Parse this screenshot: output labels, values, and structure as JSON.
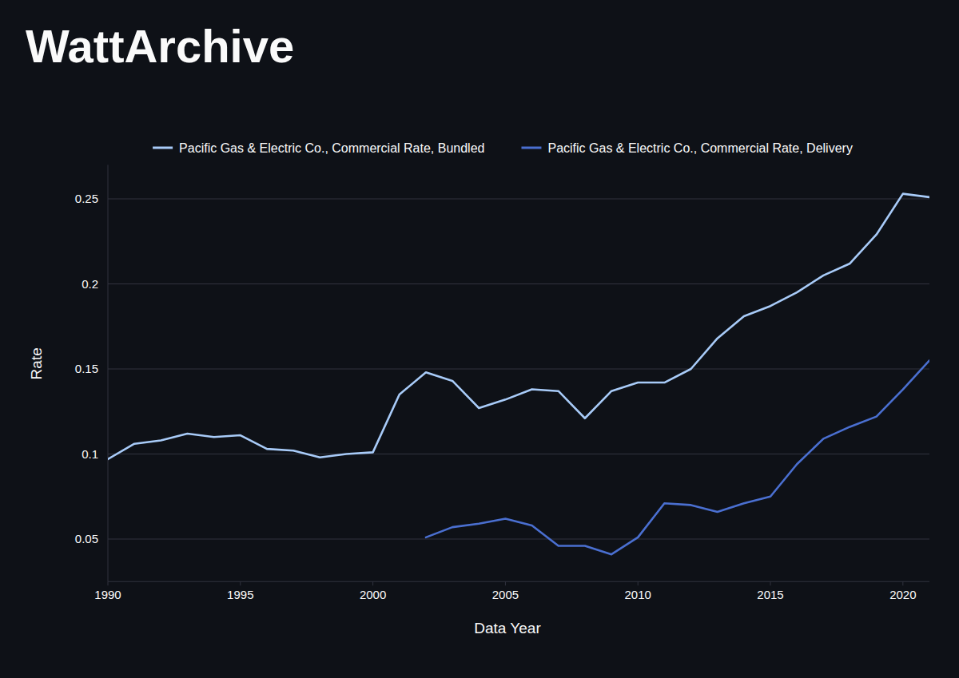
{
  "chart_data": {
    "type": "line",
    "title": "WattArchive",
    "x_label": "Data Year",
    "y_label": "Rate",
    "x": [
      1990,
      1991,
      1992,
      1993,
      1994,
      1995,
      1996,
      1997,
      1998,
      1999,
      2000,
      2001,
      2002,
      2003,
      2004,
      2005,
      2006,
      2007,
      2008,
      2009,
      2010,
      2011,
      2012,
      2013,
      2014,
      2015,
      2016,
      2017,
      2018,
      2019,
      2020,
      2021
    ],
    "series": [
      {
        "name": "Pacific Gas & Electric Co., Commercial Rate, Bundled",
        "color": "#a8cbf8",
        "values": [
          0.097,
          0.106,
          0.108,
          0.112,
          0.11,
          0.111,
          0.103,
          0.102,
          0.098,
          0.1,
          0.101,
          0.135,
          0.148,
          0.143,
          0.127,
          0.132,
          0.138,
          0.137,
          0.121,
          0.137,
          0.142,
          0.142,
          0.15,
          0.168,
          0.181,
          0.187,
          0.195,
          0.205,
          0.212,
          0.229,
          0.253,
          0.251
        ]
      },
      {
        "name": "Pacific Gas & Electric Co., Commercial Rate, Delivery",
        "color": "#4a6fd0",
        "values": [
          null,
          null,
          null,
          null,
          null,
          null,
          null,
          null,
          null,
          null,
          null,
          null,
          0.051,
          0.057,
          0.059,
          0.062,
          0.058,
          0.046,
          0.046,
          0.041,
          0.051,
          0.071,
          0.07,
          0.066,
          0.071,
          0.075,
          0.094,
          0.109,
          0.116,
          0.122,
          0.138,
          0.155
        ]
      }
    ],
    "xlim": [
      1990,
      2021
    ],
    "xticks": [
      1990,
      1995,
      2000,
      2005,
      2010,
      2015,
      2020
    ],
    "ylim": [
      0.025,
      0.27
    ],
    "yticks": [
      0.05,
      0.1,
      0.15,
      0.2,
      0.25
    ],
    "grid": true,
    "legend": "top"
  }
}
